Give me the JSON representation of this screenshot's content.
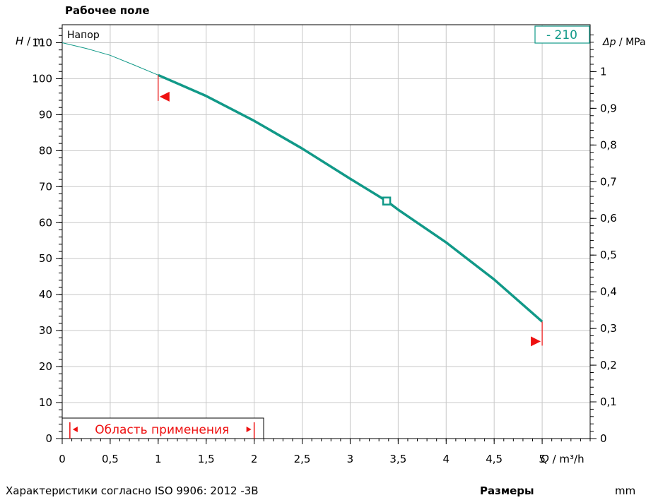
{
  "colors": {
    "curve": "#119988",
    "range": "#ee1111",
    "grid": "#c8c8c8",
    "axis": "#000000",
    "background": "#ffffff"
  },
  "chart_data": {
    "type": "line",
    "title": "Рабочее поле",
    "box_label": "Напор",
    "series_badge": "- 210",
    "xlabel": {
      "symbol": "Q",
      "unit": "/ m³/h"
    },
    "ylabel_left": {
      "symbol": "H",
      "unit": "/ m"
    },
    "ylabel_right": {
      "symbol": "Δp",
      "unit": "/ MPa"
    },
    "xlim": [
      0,
      5.5
    ],
    "ylim": [
      0,
      115
    ],
    "x_ticks": [
      0,
      0.5,
      1,
      1.5,
      2,
      2.5,
      3,
      3.5,
      4,
      4.5,
      5
    ],
    "x_tick_labels": [
      "0",
      "0,5",
      "1",
      "1,5",
      "2",
      "2,5",
      "3",
      "3,5",
      "4",
      "4,5",
      "5"
    ],
    "y_ticks": [
      0,
      10,
      20,
      30,
      40,
      50,
      60,
      70,
      80,
      90,
      100,
      110
    ],
    "y_tick_labels": [
      "0",
      "10",
      "20",
      "30",
      "40",
      "50",
      "60",
      "70",
      "80",
      "90",
      "100",
      "110"
    ],
    "y_right_tick_labels": [
      "0",
      "0,1",
      "0,2",
      "0,3",
      "0,4",
      "0,5",
      "0,6",
      "0,7",
      "0,8",
      "0,9",
      "1"
    ],
    "grid": true,
    "curve": {
      "extension": [
        {
          "x": 0,
          "y": 110
        },
        {
          "x": 0.25,
          "y": 108.4
        },
        {
          "x": 0.5,
          "y": 106.5
        },
        {
          "x": 0.75,
          "y": 103.8
        },
        {
          "x": 1,
          "y": 101
        }
      ],
      "operating": [
        {
          "x": 1,
          "y": 101
        },
        {
          "x": 1.5,
          "y": 95.2
        },
        {
          "x": 2,
          "y": 88.3
        },
        {
          "x": 2.5,
          "y": 80.6
        },
        {
          "x": 3,
          "y": 72.2
        },
        {
          "x": 3.38,
          "y": 66
        },
        {
          "x": 3.5,
          "y": 63.6
        },
        {
          "x": 4,
          "y": 54.5
        },
        {
          "x": 4.5,
          "y": 44.2
        },
        {
          "x": 5,
          "y": 32.5
        }
      ]
    },
    "duty_point": {
      "x": 3.38,
      "y": 66
    },
    "range_markers": [
      {
        "x": 1,
        "y": 95
      },
      {
        "x": 5,
        "y": 27
      }
    ],
    "application_range": {
      "label": "Область применения",
      "x_start": 0.08,
      "x_end": 2
    }
  },
  "footer": {
    "characteristics": "Характеристики согласно ISO 9906: 2012      -3B",
    "dimensions_label": "Размеры",
    "dimensions_unit": "mm"
  }
}
